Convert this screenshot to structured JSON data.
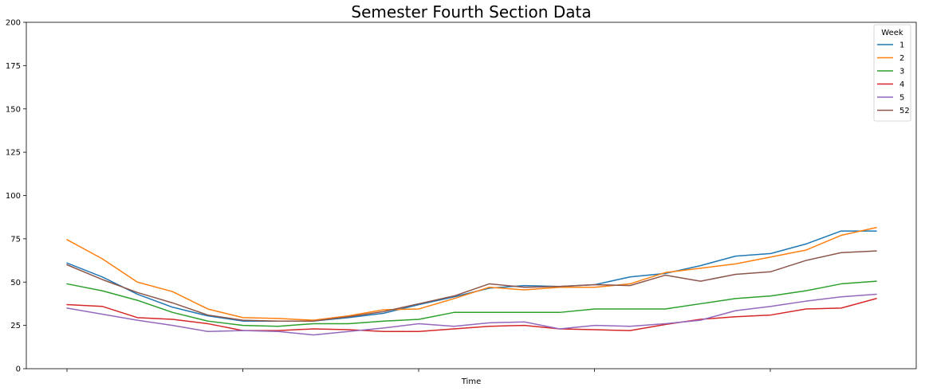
{
  "chart_data": {
    "type": "line",
    "title": "Semester Fourth Section Data",
    "xlabel": "Time",
    "ylabel": "",
    "ylim": [
      0,
      200
    ],
    "yticks": [
      0,
      25,
      50,
      75,
      100,
      125,
      150,
      175,
      200
    ],
    "ytick_labels": [
      "0",
      "25",
      "50",
      "75",
      "100",
      "125",
      "150",
      "175",
      "200"
    ],
    "x_tick_count": 5,
    "x_tick_labels": [],
    "grid": false,
    "legend": {
      "title": "Week",
      "placement": "top-right"
    },
    "series": [
      {
        "name": "1",
        "color": "#1f77b4",
        "values": [
          61,
          53,
          43,
          35.5,
          30.5,
          27.5,
          27.5,
          27.5,
          29.5,
          32,
          37,
          41.5,
          46.5,
          48,
          47.5,
          48.5,
          53,
          55,
          59.5,
          65,
          66.5,
          72,
          79.5,
          79.5
        ]
      },
      {
        "name": "2",
        "color": "#ff7f0e",
        "values": [
          74.5,
          63.5,
          50,
          44.5,
          34.5,
          29.5,
          29,
          28,
          30.5,
          34,
          34.5,
          40.5,
          47,
          45.5,
          47,
          47,
          49,
          55.5,
          58,
          60.5,
          64.5,
          68.5,
          77,
          81.5
        ]
      },
      {
        "name": "3",
        "color": "#2ca02c",
        "values": [
          49,
          45,
          39.5,
          32.5,
          27.5,
          25,
          24.5,
          26,
          26,
          27.5,
          28.5,
          32.5,
          32.5,
          32.5,
          32.5,
          34.5,
          34.5,
          34.5,
          37.5,
          40.5,
          42,
          45,
          49,
          50.5
        ]
      },
      {
        "name": "4",
        "color": "#d62728",
        "values": [
          37,
          36,
          29.5,
          28.5,
          26,
          22,
          22,
          23,
          22.5,
          21.5,
          21.5,
          23,
          24.5,
          25,
          23,
          22.5,
          22,
          25.5,
          28.5,
          30,
          31,
          34.5,
          35,
          40.5
        ]
      },
      {
        "name": "5",
        "color": "#9467bd",
        "values": [
          35,
          31.5,
          28,
          25,
          21.5,
          22,
          21.5,
          19.5,
          21.5,
          23.5,
          26,
          24.5,
          26.5,
          27,
          23,
          25,
          24.5,
          26,
          28,
          33.5,
          36,
          39,
          41.5,
          43
        ]
      },
      {
        "name": "52",
        "color": "#8c564b",
        "values": [
          60,
          51.5,
          44,
          38,
          31,
          28,
          27.5,
          27.5,
          30,
          33,
          37.5,
          42,
          49,
          47,
          47.5,
          48.5,
          48,
          54,
          50.5,
          54.5,
          56,
          62.5,
          67,
          68
        ]
      }
    ]
  }
}
